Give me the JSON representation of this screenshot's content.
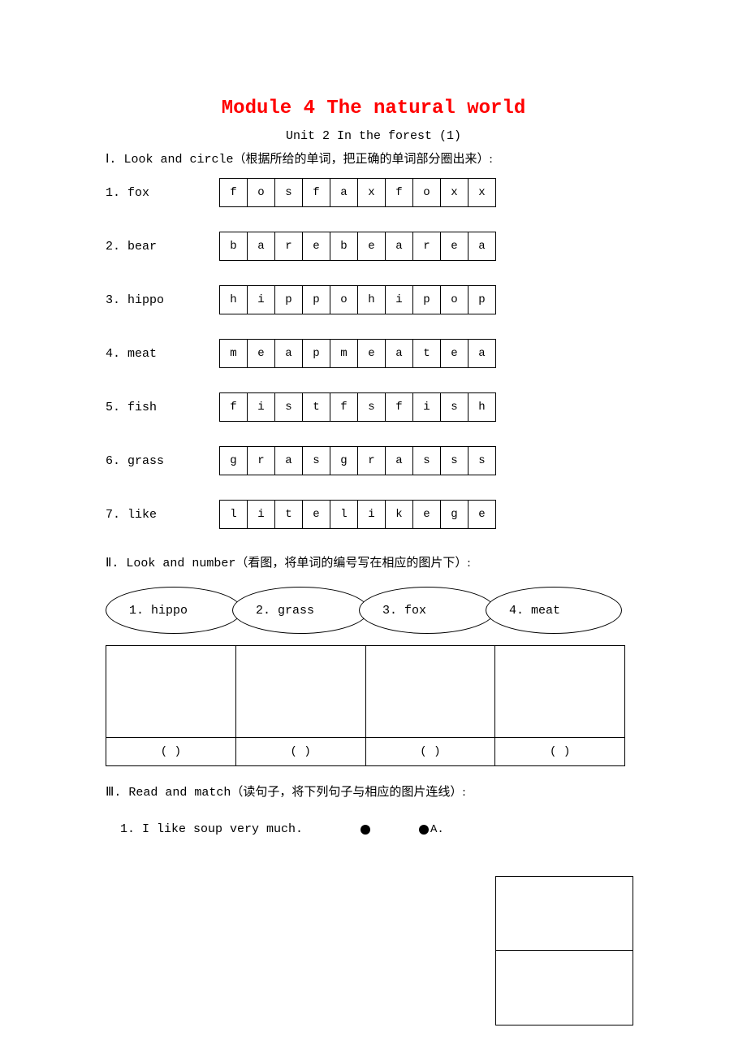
{
  "colors": {
    "title": "#ff0000",
    "text": "#000000",
    "bg": "#ffffff",
    "border": "#000000"
  },
  "fonts": {
    "mono": "Courier New",
    "cn": "SimSun",
    "title_size": 24,
    "body_size": 15
  },
  "title": "Module 4  The natural world",
  "subtitle": "Unit 2  In the forest (1)",
  "section1": {
    "num": "Ⅰ. ",
    "en": "Look and circle",
    "cn": "（根据所给的单词，把正确的单词部分圈出来）:"
  },
  "words": [
    {
      "label": "1. fox",
      "letters": [
        "f",
        "o",
        "s",
        "f",
        "a",
        "x",
        "f",
        "o",
        "x",
        "x"
      ]
    },
    {
      "label": "2. bear",
      "letters": [
        "b",
        "a",
        "r",
        "e",
        "b",
        "e",
        "a",
        "r",
        "e",
        "a"
      ]
    },
    {
      "label": "3. hippo",
      "letters": [
        "h",
        "i",
        "p",
        "p",
        "o",
        "h",
        "i",
        "p",
        "o",
        "p"
      ]
    },
    {
      "label": "4. meat",
      "letters": [
        "m",
        "e",
        "a",
        "p",
        "m",
        "e",
        "a",
        "t",
        "e",
        "a"
      ]
    },
    {
      "label": "5. fish",
      "letters": [
        "f",
        "i",
        "s",
        "t",
        "f",
        "s",
        "f",
        "i",
        "s",
        "h"
      ]
    },
    {
      "label": "6. grass",
      "letters": [
        "g",
        "r",
        "a",
        "s",
        "g",
        "r",
        "a",
        "s",
        "s",
        "s"
      ]
    },
    {
      "label": "7. like",
      "letters": [
        "l",
        "i",
        "t",
        "e",
        "l",
        "i",
        "k",
        "e",
        "g",
        "e"
      ]
    }
  ],
  "section2": {
    "num": "Ⅱ. ",
    "en": "Look and number",
    "cn": "（看图，将单词的编号写在相应的图片下）:"
  },
  "ovals": [
    "1. hippo",
    "2. grass",
    "3. fox",
    "4. meat"
  ],
  "answer_cell": "(   )",
  "section3": {
    "num": "Ⅲ. ",
    "en": "Read and match",
    "cn": "（读句子，将下列句子与相应的图片连线）:"
  },
  "match": {
    "item1": "1. I like soup very much.",
    "letterA": "A."
  }
}
